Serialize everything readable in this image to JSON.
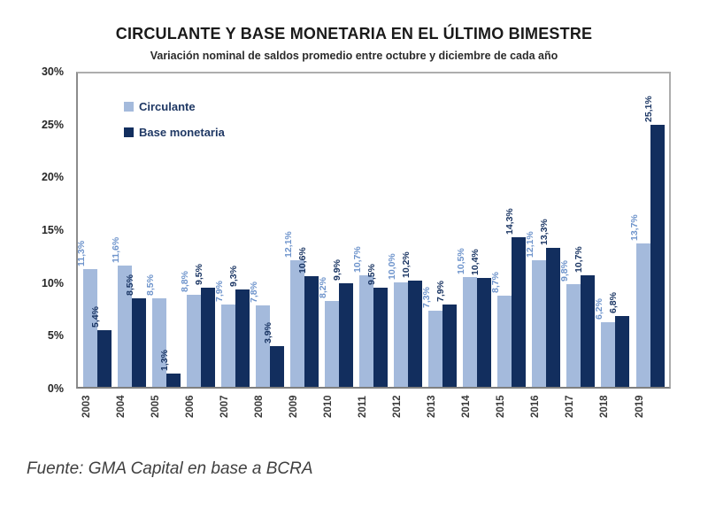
{
  "title": "CIRCULANTE Y BASE MONETARIA EN EL ÚLTIMO BIMESTRE",
  "subtitle": "Variación nominal de saldos promedio entre octubre y diciembre de cada año",
  "source": "Fuente: GMA Capital en base a BCRA",
  "colors": {
    "circulante_bar": "#A4BADC",
    "base_monetaria_bar": "#122E5E",
    "circulante_label_text": "#6D93CB",
    "base_monetaria_label_text": "#1A3563"
  },
  "chart_data": {
    "type": "bar",
    "title": "CIRCULANTE Y BASE MONETARIA EN EL ÚLTIMO BIMESTRE",
    "subtitle": "Variación nominal de saldos promedio entre octubre y diciembre de cada año",
    "categories": [
      "2003",
      "2004",
      "2005",
      "2006",
      "2007",
      "2008",
      "2009",
      "2010",
      "2011",
      "2012",
      "2013",
      "2014",
      "2015",
      "2016",
      "2017",
      "2018",
      "2019"
    ],
    "series": [
      {
        "name": "Circulante",
        "values": [
          11.3,
          11.6,
          8.5,
          8.8,
          7.9,
          7.8,
          12.1,
          8.2,
          10.7,
          10.0,
          7.3,
          10.5,
          8.7,
          12.1,
          9.8,
          6.2,
          13.7
        ],
        "labels": [
          "11,3%",
          "11,6%",
          "8,5%",
          "8,8%",
          "7,9%",
          "7,8%",
          "12,1%",
          "8,2%",
          "10,7%",
          "10,0%",
          "7,3%",
          "10,5%",
          "8,7%",
          "12,1%",
          "9,8%",
          "6,2%",
          "13,7%"
        ]
      },
      {
        "name": "Base monetaria",
        "values": [
          5.4,
          8.5,
          1.3,
          9.5,
          9.3,
          3.9,
          10.6,
          9.9,
          9.5,
          10.2,
          7.9,
          10.4,
          14.3,
          13.3,
          10.7,
          6.8,
          25.1
        ],
        "labels": [
          "5,4%",
          "8,5%",
          "1,3%",
          "9,5%",
          "9,3%",
          "3,9%",
          "10,6%",
          "9,9%",
          "9,5%",
          "10,2%",
          "7,9%",
          "10,4%",
          "14,3%",
          "13,3%",
          "10,7%",
          "6,8%",
          "25,1%"
        ]
      }
    ],
    "xlabel": "",
    "ylabel": "",
    "ylim": [
      0,
      30
    ],
    "ytick_step": 5,
    "yticks": [
      "0%",
      "5%",
      "10%",
      "15%",
      "20%",
      "25%",
      "30%"
    ],
    "grid": false,
    "legend_position": "top-left-inside",
    "bar_label_rotation": "vertical-bottom-to-top"
  }
}
